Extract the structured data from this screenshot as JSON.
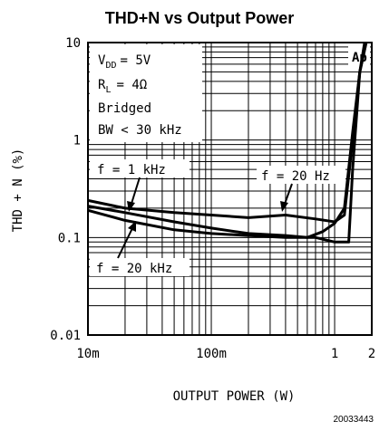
{
  "chart_data": {
    "type": "line",
    "title": "THD+N vs Output Power",
    "xlabel": "OUTPUT POWER (W)",
    "ylabel": "THD + N (%)",
    "xscale": "log",
    "yscale": "log",
    "xlim": [
      0.01,
      2
    ],
    "ylim": [
      0.01,
      10
    ],
    "xticks": [
      {
        "value": 0.01,
        "label": "10m"
      },
      {
        "value": 0.1,
        "label": "100m"
      },
      {
        "value": 1,
        "label": "1"
      },
      {
        "value": 2,
        "label": "2"
      }
    ],
    "yticks": [
      {
        "value": 10,
        "label": "10"
      },
      {
        "value": 1,
        "label": "1"
      },
      {
        "value": 0.1,
        "label": "0.1"
      },
      {
        "value": 0.01,
        "label": "0.01"
      }
    ],
    "grid": true,
    "conditions": [
      "V",
      "= 5V",
      "R",
      "= 4Ω",
      "Bridged",
      "BW < 30 kHz"
    ],
    "series": [
      {
        "name": "f = 1 kHz",
        "x": [
          0.01,
          0.02,
          0.05,
          0.1,
          0.2,
          0.4,
          0.7,
          1.0,
          1.3,
          1.4,
          1.6,
          1.8
        ],
        "y": [
          0.19,
          0.15,
          0.12,
          0.11,
          0.105,
          0.1,
          0.1,
          0.09,
          0.09,
          0.5,
          5.0,
          10.0
        ]
      },
      {
        "name": "f = 20 Hz",
        "x": [
          0.01,
          0.02,
          0.05,
          0.1,
          0.2,
          0.4,
          0.7,
          1.0,
          1.2,
          1.4,
          1.6,
          1.8
        ],
        "y": [
          0.24,
          0.2,
          0.18,
          0.17,
          0.16,
          0.17,
          0.155,
          0.145,
          0.17,
          1.0,
          5.0,
          10.0
        ]
      },
      {
        "name": "f = 20 kHz",
        "x": [
          0.01,
          0.02,
          0.05,
          0.1,
          0.2,
          0.4,
          0.6,
          0.8,
          1.0,
          1.2,
          1.4,
          1.6,
          1.75
        ],
        "y": [
          0.21,
          0.18,
          0.145,
          0.125,
          0.11,
          0.105,
          0.1,
          0.115,
          0.14,
          0.2,
          1.2,
          5.0,
          10.0
        ]
      }
    ],
    "annotations": [
      "f = 1 kHz",
      "f = 20 Hz",
      "f = 20 kHz"
    ],
    "corner_label": "Ap",
    "doc_number": "20033443"
  },
  "labels": {
    "vdd_sub": "DD",
    "rl_sub": "L"
  }
}
